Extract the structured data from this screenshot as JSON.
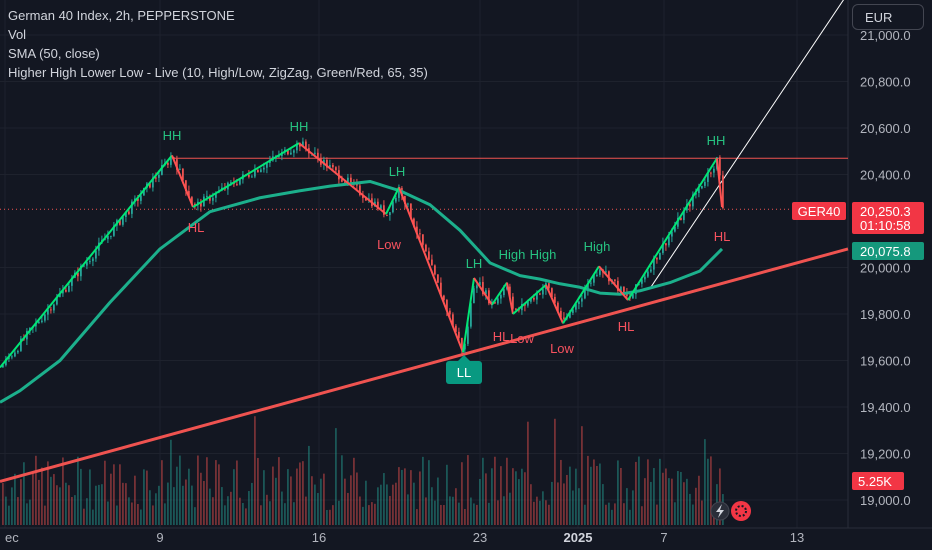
{
  "header": {
    "symbol_line": "German 40 Index, 2h, PEPPERSTONE",
    "indicators": [
      "Vol",
      "SMA (50, close)",
      "Higher High Lower Low - Live (10, High/Low, ZigZag, Green/Red, 65, 35)"
    ],
    "currency": "EUR"
  },
  "colors": {
    "background": "#131722",
    "bull": "#26a69a",
    "bear": "#ef5350",
    "zigzag_up": "#00e676",
    "zigzag_down": "#ff5252",
    "sma": "#1cb08c",
    "price_tag": "#f23645",
    "sma_tag": "#15987c"
  },
  "chart_data": {
    "type": "line",
    "symbol": "GER40",
    "y_ticks": [
      "21,000.0",
      "20,800.0",
      "20,600.0",
      "20,400.0",
      "20,000.0",
      "19,800.0",
      "19,600.0",
      "19,400.0",
      "19,200.0",
      "19,000.0"
    ],
    "ylim": [
      18950,
      21100
    ],
    "x_ticks": [
      "ec",
      "9",
      "16",
      "23",
      "2025",
      "7",
      "13"
    ],
    "price_label": {
      "symbol": "GER40",
      "value": "20,250.3",
      "countdown": "01:10:58"
    },
    "sma_label": "20,075.8",
    "volume_label": "5.25K",
    "zigzag": [
      {
        "value": 19570,
        "label": ""
      },
      {
        "value": 20482,
        "label": "HH"
      },
      {
        "value": 20260,
        "label": "HL"
      },
      {
        "value": 20535,
        "label": "HH"
      },
      {
        "value": 20230,
        "label": "Low"
      },
      {
        "value": 20345,
        "label": "LH"
      },
      {
        "value": 19635,
        "label": "LL"
      },
      {
        "value": 19955,
        "label": "LH"
      },
      {
        "value": 19840,
        "label": "HL"
      },
      {
        "value": 19935,
        "label": "High"
      },
      {
        "value": 19800,
        "label": "Low"
      },
      {
        "value": 19925,
        "label": "High"
      },
      {
        "value": 19760,
        "label": "Low"
      },
      {
        "value": 20005,
        "label": "High"
      },
      {
        "value": 19860,
        "label": "HL"
      },
      {
        "value": 20470,
        "label": "HH"
      },
      {
        "value": 20260,
        "label": "HL"
      }
    ],
    "sma_series": [
      19420,
      19470,
      19600,
      19850,
      20080,
      20240,
      20300,
      20330,
      20350,
      20370,
      20330,
      20270,
      20160,
      20020,
      19965,
      19950,
      19930,
      19915,
      19890,
      19885,
      19900,
      19935,
      19985,
      20080
    ],
    "resistance_level": 20470,
    "support_trendline": [
      19080,
      20080
    ],
    "channel_line": [
      19910,
      21180
    ]
  }
}
